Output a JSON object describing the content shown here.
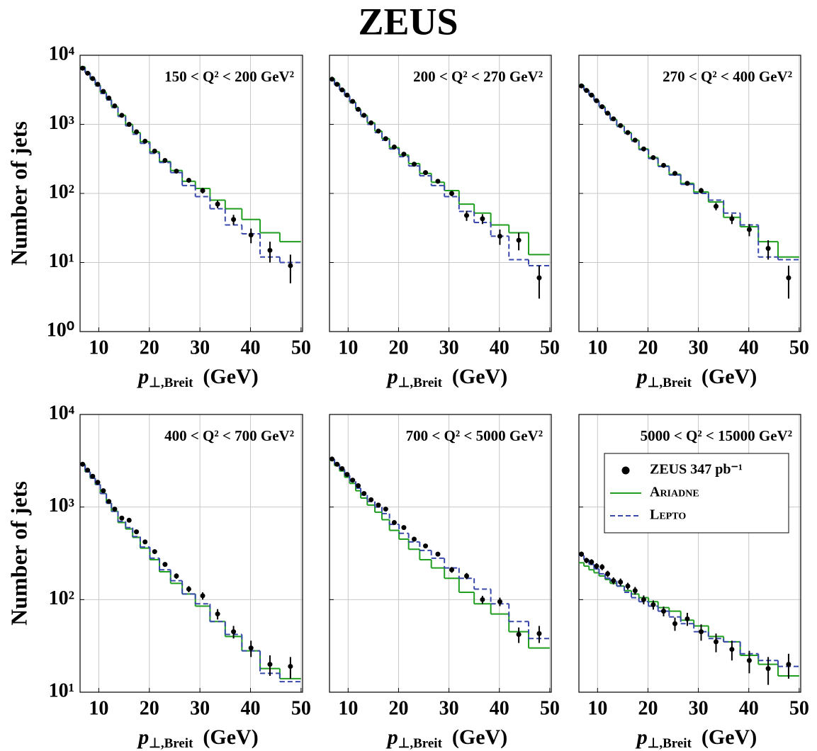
{
  "title": "ZEUS",
  "series": [
    {
      "name": "ZEUS 347 pb⁻¹",
      "color": "#000000",
      "style": "points"
    },
    {
      "name": "Ariadne",
      "color": "#1f9e1f",
      "style": "solid"
    },
    {
      "name": "Lepto",
      "color": "#3949ab",
      "style": "dashed"
    }
  ],
  "chart_data": [
    {
      "type": "histogram",
      "label": "150 < Q² < 200 GeV²",
      "bins": [
        6.3,
        7.3,
        8.3,
        9.3,
        10.3,
        11.5,
        12.5,
        13.8,
        15.3,
        16.7,
        18.2,
        20.1,
        22,
        24.2,
        26.5,
        29.1,
        32,
        35,
        38.3,
        41.9,
        45.8,
        50
      ],
      "xlim": [
        6.3,
        50.3
      ],
      "xticks": [
        10,
        20,
        30,
        40,
        50
      ],
      "ylim": [
        1,
        10000
      ],
      "log": true,
      "grid": true,
      "yticks": [
        {
          "value": 1,
          "label": "10⁰"
        },
        {
          "value": 10,
          "label": "10¹"
        },
        {
          "value": 100,
          "label": "10²"
        },
        {
          "value": 1000,
          "label": "10³"
        },
        {
          "value": 10000,
          "label": "10⁴"
        }
      ],
      "x_label": {
        "symbol": "p",
        "subscript": "⊥,Breit",
        "unit": "(GeV)"
      },
      "y_label": "Number of jets",
      "series": [
        {
          "values": [
            6500,
            5500,
            4600,
            3800,
            3000,
            2400,
            1850,
            1350,
            1000,
            780,
            570,
            410,
            300,
            210,
            155,
            110,
            70,
            42,
            25,
            15,
            9
          ],
          "errors": [
            150,
            120,
            100,
            80,
            70,
            60,
            50,
            40,
            30,
            25,
            20,
            15,
            12,
            10,
            8,
            10,
            9,
            7,
            6,
            5,
            4
          ]
        },
        {
          "values": [
            6800,
            5600,
            4500,
            3700,
            2900,
            2300,
            1800,
            1350,
            1000,
            760,
            560,
            400,
            290,
            215,
            150,
            118,
            80,
            60,
            42,
            27,
            20
          ]
        },
        {
          "values": [
            6600,
            5500,
            4500,
            3600,
            2800,
            2250,
            1750,
            1300,
            950,
            720,
            530,
            380,
            280,
            200,
            130,
            90,
            60,
            35,
            26,
            12,
            10
          ]
        }
      ]
    },
    {
      "type": "histogram",
      "label": "200 < Q² < 270 GeV²",
      "bins": [
        6.3,
        7.3,
        8.3,
        9.3,
        10.3,
        11.5,
        12.5,
        13.8,
        15.3,
        16.7,
        18.2,
        20.1,
        22,
        24.2,
        26.5,
        29.1,
        32,
        35,
        38.3,
        41.9,
        45.8,
        50
      ],
      "xlim": [
        6.3,
        50.3
      ],
      "xticks": [
        10,
        20,
        30,
        40,
        50
      ],
      "ylim": [
        1,
        10000
      ],
      "log": true,
      "grid": true,
      "yticks": [
        1,
        10,
        100,
        1000,
        10000
      ],
      "x_label": {
        "symbol": "p",
        "subscript": "⊥,Breit",
        "unit": "(GeV)"
      },
      "series": [
        {
          "values": [
            4500,
            3800,
            3150,
            2650,
            2150,
            1650,
            1350,
            1050,
            800,
            620,
            470,
            370,
            265,
            200,
            150,
            100,
            48,
            43,
            24,
            21,
            6
          ],
          "errors": [
            100,
            90,
            80,
            70,
            60,
            50,
            40,
            35,
            30,
            25,
            20,
            17,
            14,
            12,
            10,
            9,
            8,
            7,
            6,
            6,
            3
          ]
        },
        {
          "values": [
            4600,
            3900,
            3200,
            2600,
            2100,
            1650,
            1350,
            1050,
            800,
            620,
            460,
            360,
            270,
            195,
            145,
            110,
            70,
            52,
            35,
            27,
            13
          ]
        },
        {
          "values": [
            4400,
            3700,
            3100,
            2550,
            2050,
            1600,
            1300,
            1000,
            760,
            590,
            440,
            340,
            250,
            180,
            130,
            90,
            55,
            38,
            24,
            11,
            9
          ]
        }
      ]
    },
    {
      "type": "histogram",
      "label": "270 < Q² < 400 GeV²",
      "bins": [
        6.3,
        7.3,
        8.3,
        9.3,
        10.3,
        11.5,
        12.5,
        13.8,
        15.3,
        16.7,
        18.2,
        20.1,
        22,
        24.2,
        26.5,
        29.1,
        32,
        35,
        38.3,
        41.9,
        45.8,
        50
      ],
      "xlim": [
        6.3,
        50.3
      ],
      "xticks": [
        10,
        20,
        30,
        40,
        50
      ],
      "ylim": [
        1,
        10000
      ],
      "log": true,
      "grid": true,
      "yticks": [
        1,
        10,
        100,
        1000,
        10000
      ],
      "x_label": {
        "symbol": "p",
        "subscript": "⊥,Breit",
        "unit": "(GeV)"
      },
      "series": [
        {
          "values": [
            3600,
            3100,
            2650,
            2200,
            1800,
            1450,
            1200,
            960,
            760,
            590,
            440,
            330,
            255,
            195,
            140,
            110,
            65,
            43,
            30,
            16,
            6
          ],
          "errors": [
            90,
            80,
            70,
            60,
            55,
            45,
            40,
            35,
            30,
            25,
            20,
            17,
            14,
            12,
            10,
            10,
            8,
            7,
            6,
            5,
            3
          ]
        },
        {
          "values": [
            3700,
            3150,
            2650,
            2200,
            1800,
            1450,
            1180,
            950,
            760,
            590,
            440,
            330,
            250,
            190,
            140,
            105,
            75,
            45,
            33,
            20,
            12
          ]
        },
        {
          "values": [
            3600,
            3100,
            2600,
            2150,
            1750,
            1400,
            1150,
            930,
            740,
            570,
            430,
            320,
            245,
            185,
            135,
            100,
            80,
            52,
            35,
            12,
            11
          ]
        }
      ]
    },
    {
      "type": "histogram",
      "label": "400 < Q² < 700 GeV²",
      "bins": [
        6.3,
        7.3,
        8.3,
        9.3,
        10.3,
        11.5,
        12.5,
        13.8,
        15.3,
        16.7,
        18.2,
        20.1,
        22,
        24.2,
        26.5,
        29.1,
        32,
        35,
        38.3,
        41.9,
        45.8,
        50
      ],
      "xlim": [
        6.3,
        50.3
      ],
      "xticks": [
        10,
        20,
        30,
        40,
        50
      ],
      "ylim": [
        10,
        10000
      ],
      "log": true,
      "grid": true,
      "yticks": [
        {
          "value": 10,
          "label": "10¹"
        },
        {
          "value": 100,
          "label": "10²"
        },
        {
          "value": 1000,
          "label": "10³"
        },
        {
          "value": 10000,
          "label": "10⁴"
        }
      ],
      "x_label": {
        "symbol": "p",
        "subscript": "⊥,Breit",
        "unit": "(GeV)"
      },
      "y_label": "Number of jets",
      "series": [
        {
          "values": [
            2900,
            2500,
            2150,
            1850,
            1500,
            1150,
            950,
            760,
            720,
            540,
            420,
            330,
            240,
            180,
            130,
            110,
            70,
            45,
            30,
            20,
            19
          ],
          "errors": [
            80,
            70,
            60,
            55,
            50,
            40,
            35,
            30,
            28,
            25,
            20,
            17,
            14,
            12,
            10,
            10,
            9,
            7,
            6,
            5,
            5
          ]
        },
        {
          "values": [
            2900,
            2400,
            2050,
            1750,
            1400,
            1100,
            900,
            680,
            580,
            470,
            360,
            270,
            200,
            150,
            115,
            85,
            58,
            40,
            28,
            18,
            14
          ]
        },
        {
          "values": [
            2850,
            2400,
            2050,
            1750,
            1400,
            1100,
            900,
            700,
            600,
            480,
            370,
            280,
            210,
            160,
            115,
            90,
            58,
            42,
            28,
            16,
            13
          ]
        }
      ]
    },
    {
      "type": "histogram",
      "label": "700 < Q² < 5000 GeV²",
      "bins": [
        6.3,
        7.3,
        8.3,
        9.3,
        10.3,
        11.5,
        12.5,
        13.8,
        15.3,
        16.7,
        18.2,
        20.1,
        22,
        24.2,
        26.5,
        29.1,
        32,
        35,
        38.3,
        41.9,
        45.8,
        50
      ],
      "xlim": [
        6.3,
        50.3
      ],
      "xticks": [
        10,
        20,
        30,
        40,
        50
      ],
      "ylim": [
        10,
        10000
      ],
      "log": true,
      "grid": true,
      "yticks": [
        10,
        100,
        1000,
        10000
      ],
      "x_label": {
        "symbol": "p",
        "subscript": "⊥,Breit",
        "unit": "(GeV)"
      },
      "series": [
        {
          "values": [
            3300,
            2900,
            2600,
            2250,
            1950,
            1700,
            1400,
            1200,
            1050,
            950,
            680,
            600,
            450,
            380,
            310,
            210,
            180,
            100,
            95,
            42,
            43
          ],
          "errors": [
            80,
            70,
            65,
            60,
            55,
            50,
            45,
            40,
            35,
            32,
            28,
            25,
            22,
            20,
            18,
            15,
            14,
            10,
            10,
            8,
            9
          ]
        },
        {
          "values": [
            3200,
            2800,
            2450,
            2100,
            1800,
            1500,
            1250,
            1050,
            880,
            730,
            560,
            450,
            350,
            270,
            220,
            170,
            120,
            90,
            70,
            45,
            30
          ]
        },
        {
          "values": [
            3300,
            2900,
            2550,
            2200,
            1900,
            1600,
            1350,
            1150,
            1000,
            850,
            650,
            520,
            420,
            340,
            280,
            220,
            170,
            130,
            90,
            58,
            38
          ]
        }
      ]
    },
    {
      "type": "histogram",
      "label": "5000 < Q² < 15000 GeV²",
      "bins": [
        6.3,
        7.3,
        8.3,
        9.3,
        10.3,
        11.5,
        12.5,
        13.8,
        15.3,
        16.7,
        18.2,
        20.1,
        22,
        24.2,
        26.5,
        29.1,
        32,
        35,
        38.3,
        41.9,
        45.8,
        50
      ],
      "xlim": [
        6.3,
        50.3
      ],
      "xticks": [
        10,
        20,
        30,
        40,
        50
      ],
      "ylim": [
        10,
        10000
      ],
      "log": true,
      "grid": true,
      "yticks": [
        10,
        100,
        1000,
        10000
      ],
      "x_label": {
        "symbol": "p",
        "subscript": "⊥,Breit",
        "unit": "(GeV)"
      },
      "legend": "upper right",
      "series": [
        {
          "values": [
            310,
            265,
            255,
            230,
            225,
            190,
            160,
            155,
            140,
            125,
            100,
            88,
            75,
            55,
            62,
            45,
            35,
            29,
            22,
            18,
            20
          ],
          "errors": [
            20,
            18,
            18,
            17,
            17,
            15,
            14,
            14,
            12,
            12,
            11,
            10,
            9,
            9,
            10,
            9,
            8,
            7,
            6,
            6,
            6
          ]
        },
        {
          "values": [
            250,
            230,
            210,
            195,
            180,
            165,
            150,
            140,
            125,
            115,
            105,
            95,
            82,
            75,
            60,
            52,
            40,
            35,
            25,
            20,
            15
          ]
        },
        {
          "values": [
            300,
            270,
            240,
            215,
            190,
            170,
            160,
            140,
            120,
            105,
            95,
            85,
            75,
            65,
            55,
            45,
            38,
            35,
            26,
            22,
            19
          ]
        }
      ]
    }
  ]
}
